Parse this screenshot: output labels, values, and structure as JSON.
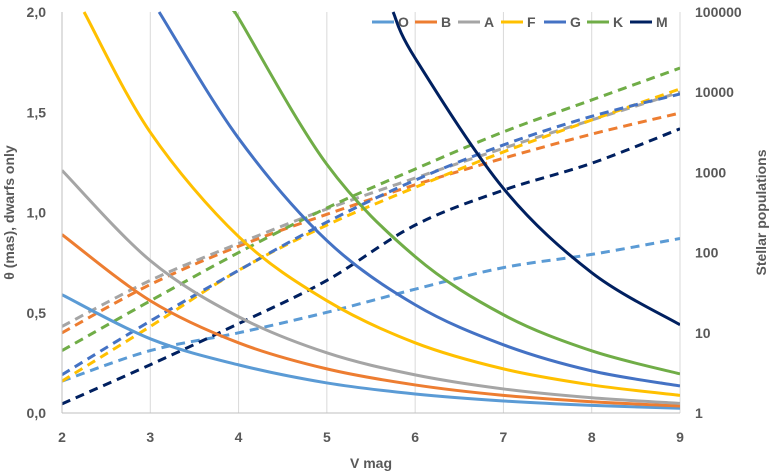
{
  "chart_data": {
    "type": "line",
    "x_label": "V mag",
    "y_left_label": "θ (mas), dwarfs only",
    "y_right_label": "Stellar populations",
    "x_range": [
      2,
      9
    ],
    "x_ticks": [
      "2",
      "3",
      "4",
      "5",
      "6",
      "7",
      "8",
      "9"
    ],
    "y_left_range": [
      0,
      2
    ],
    "y_left_ticks": [
      "0,0",
      "0,5",
      "1,0",
      "1,5",
      "2,0"
    ],
    "y_right_range": [
      1,
      100000
    ],
    "y_right_scale": "log",
    "y_right_ticks": [
      "1",
      "10",
      "100",
      "1000",
      "10000",
      "100000"
    ],
    "grid": "vertical lines at integer V mag",
    "legend_position": "top-right",
    "series": [
      {
        "name": "O",
        "color": "#5B9BD5",
        "theta": {
          "x": [
            2,
            3,
            4,
            5,
            6,
            7,
            8,
            9
          ],
          "y": [
            0.59,
            0.37,
            0.24,
            0.15,
            0.095,
            0.06,
            0.038,
            0.024
          ]
        },
        "population": {
          "x": [
            2,
            3,
            4,
            5,
            6,
            7,
            8,
            9
          ],
          "y": [
            2.5,
            6,
            10,
            18,
            35,
            65,
            95,
            150
          ]
        }
      },
      {
        "name": "B",
        "color": "#ED7D31",
        "theta": {
          "x": [
            2,
            3,
            4,
            5,
            6,
            7,
            8,
            9
          ],
          "y": [
            0.89,
            0.56,
            0.35,
            0.22,
            0.14,
            0.088,
            0.056,
            0.035
          ]
        },
        "population": {
          "x": [
            2,
            3,
            4,
            5,
            6,
            7,
            8,
            9
          ],
          "y": [
            10,
            40,
            120,
            300,
            700,
            1500,
            3000,
            5500
          ]
        }
      },
      {
        "name": "A",
        "color": "#A5A5A5",
        "theta": {
          "x": [
            2,
            3,
            4,
            5,
            6,
            7,
            8,
            9
          ],
          "y": [
            1.21,
            0.76,
            0.48,
            0.3,
            0.19,
            0.12,
            0.076,
            0.048
          ]
        },
        "population": {
          "x": [
            2,
            3,
            4,
            5,
            6,
            7,
            8,
            9
          ],
          "y": [
            12,
            45,
            130,
            350,
            850,
            2000,
            4500,
            10000
          ]
        }
      },
      {
        "name": "F",
        "color": "#FFC000",
        "theta": {
          "x": [
            2.25,
            3,
            4,
            5,
            6,
            7,
            8,
            9
          ],
          "y": [
            2.0,
            1.4,
            0.88,
            0.56,
            0.35,
            0.22,
            0.14,
            0.088
          ]
        },
        "population": {
          "x": [
            2,
            3,
            4,
            5,
            6,
            7,
            8,
            9
          ],
          "y": [
            2.5,
            12,
            60,
            220,
            650,
            1800,
            4500,
            11000
          ]
        }
      },
      {
        "name": "G",
        "color": "#4472C4",
        "theta": {
          "x": [
            3.1,
            4,
            5,
            6,
            7,
            8,
            9
          ],
          "y": [
            2.0,
            1.37,
            0.86,
            0.54,
            0.34,
            0.21,
            0.135
          ]
        },
        "population": {
          "x": [
            2,
            3,
            4,
            5,
            6,
            7,
            8,
            9
          ],
          "y": [
            3,
            14,
            60,
            240,
            800,
            2200,
            5000,
            9500
          ]
        }
      },
      {
        "name": "K",
        "color": "#70AD47",
        "theta": {
          "x": [
            3.95,
            4,
            5,
            6,
            7,
            8,
            9
          ],
          "y": [
            2.0,
            1.97,
            1.24,
            0.78,
            0.49,
            0.31,
            0.195
          ]
        },
        "population": {
          "x": [
            2,
            3,
            4,
            5,
            6,
            7,
            8,
            9
          ],
          "y": [
            6,
            25,
            100,
            360,
            1100,
            3200,
            8000,
            20000
          ]
        }
      },
      {
        "name": "M",
        "color": "#002060",
        "theta": {
          "x": [
            5.75,
            6,
            7,
            8,
            9
          ],
          "y": [
            2.0,
            1.77,
            1.12,
            0.7,
            0.44
          ]
        },
        "population": {
          "x": [
            2,
            3,
            4,
            5,
            6,
            7,
            8,
            9
          ],
          "y": [
            1.3,
            4,
            13,
            45,
            220,
            600,
            1300,
            3500
          ]
        }
      }
    ]
  }
}
